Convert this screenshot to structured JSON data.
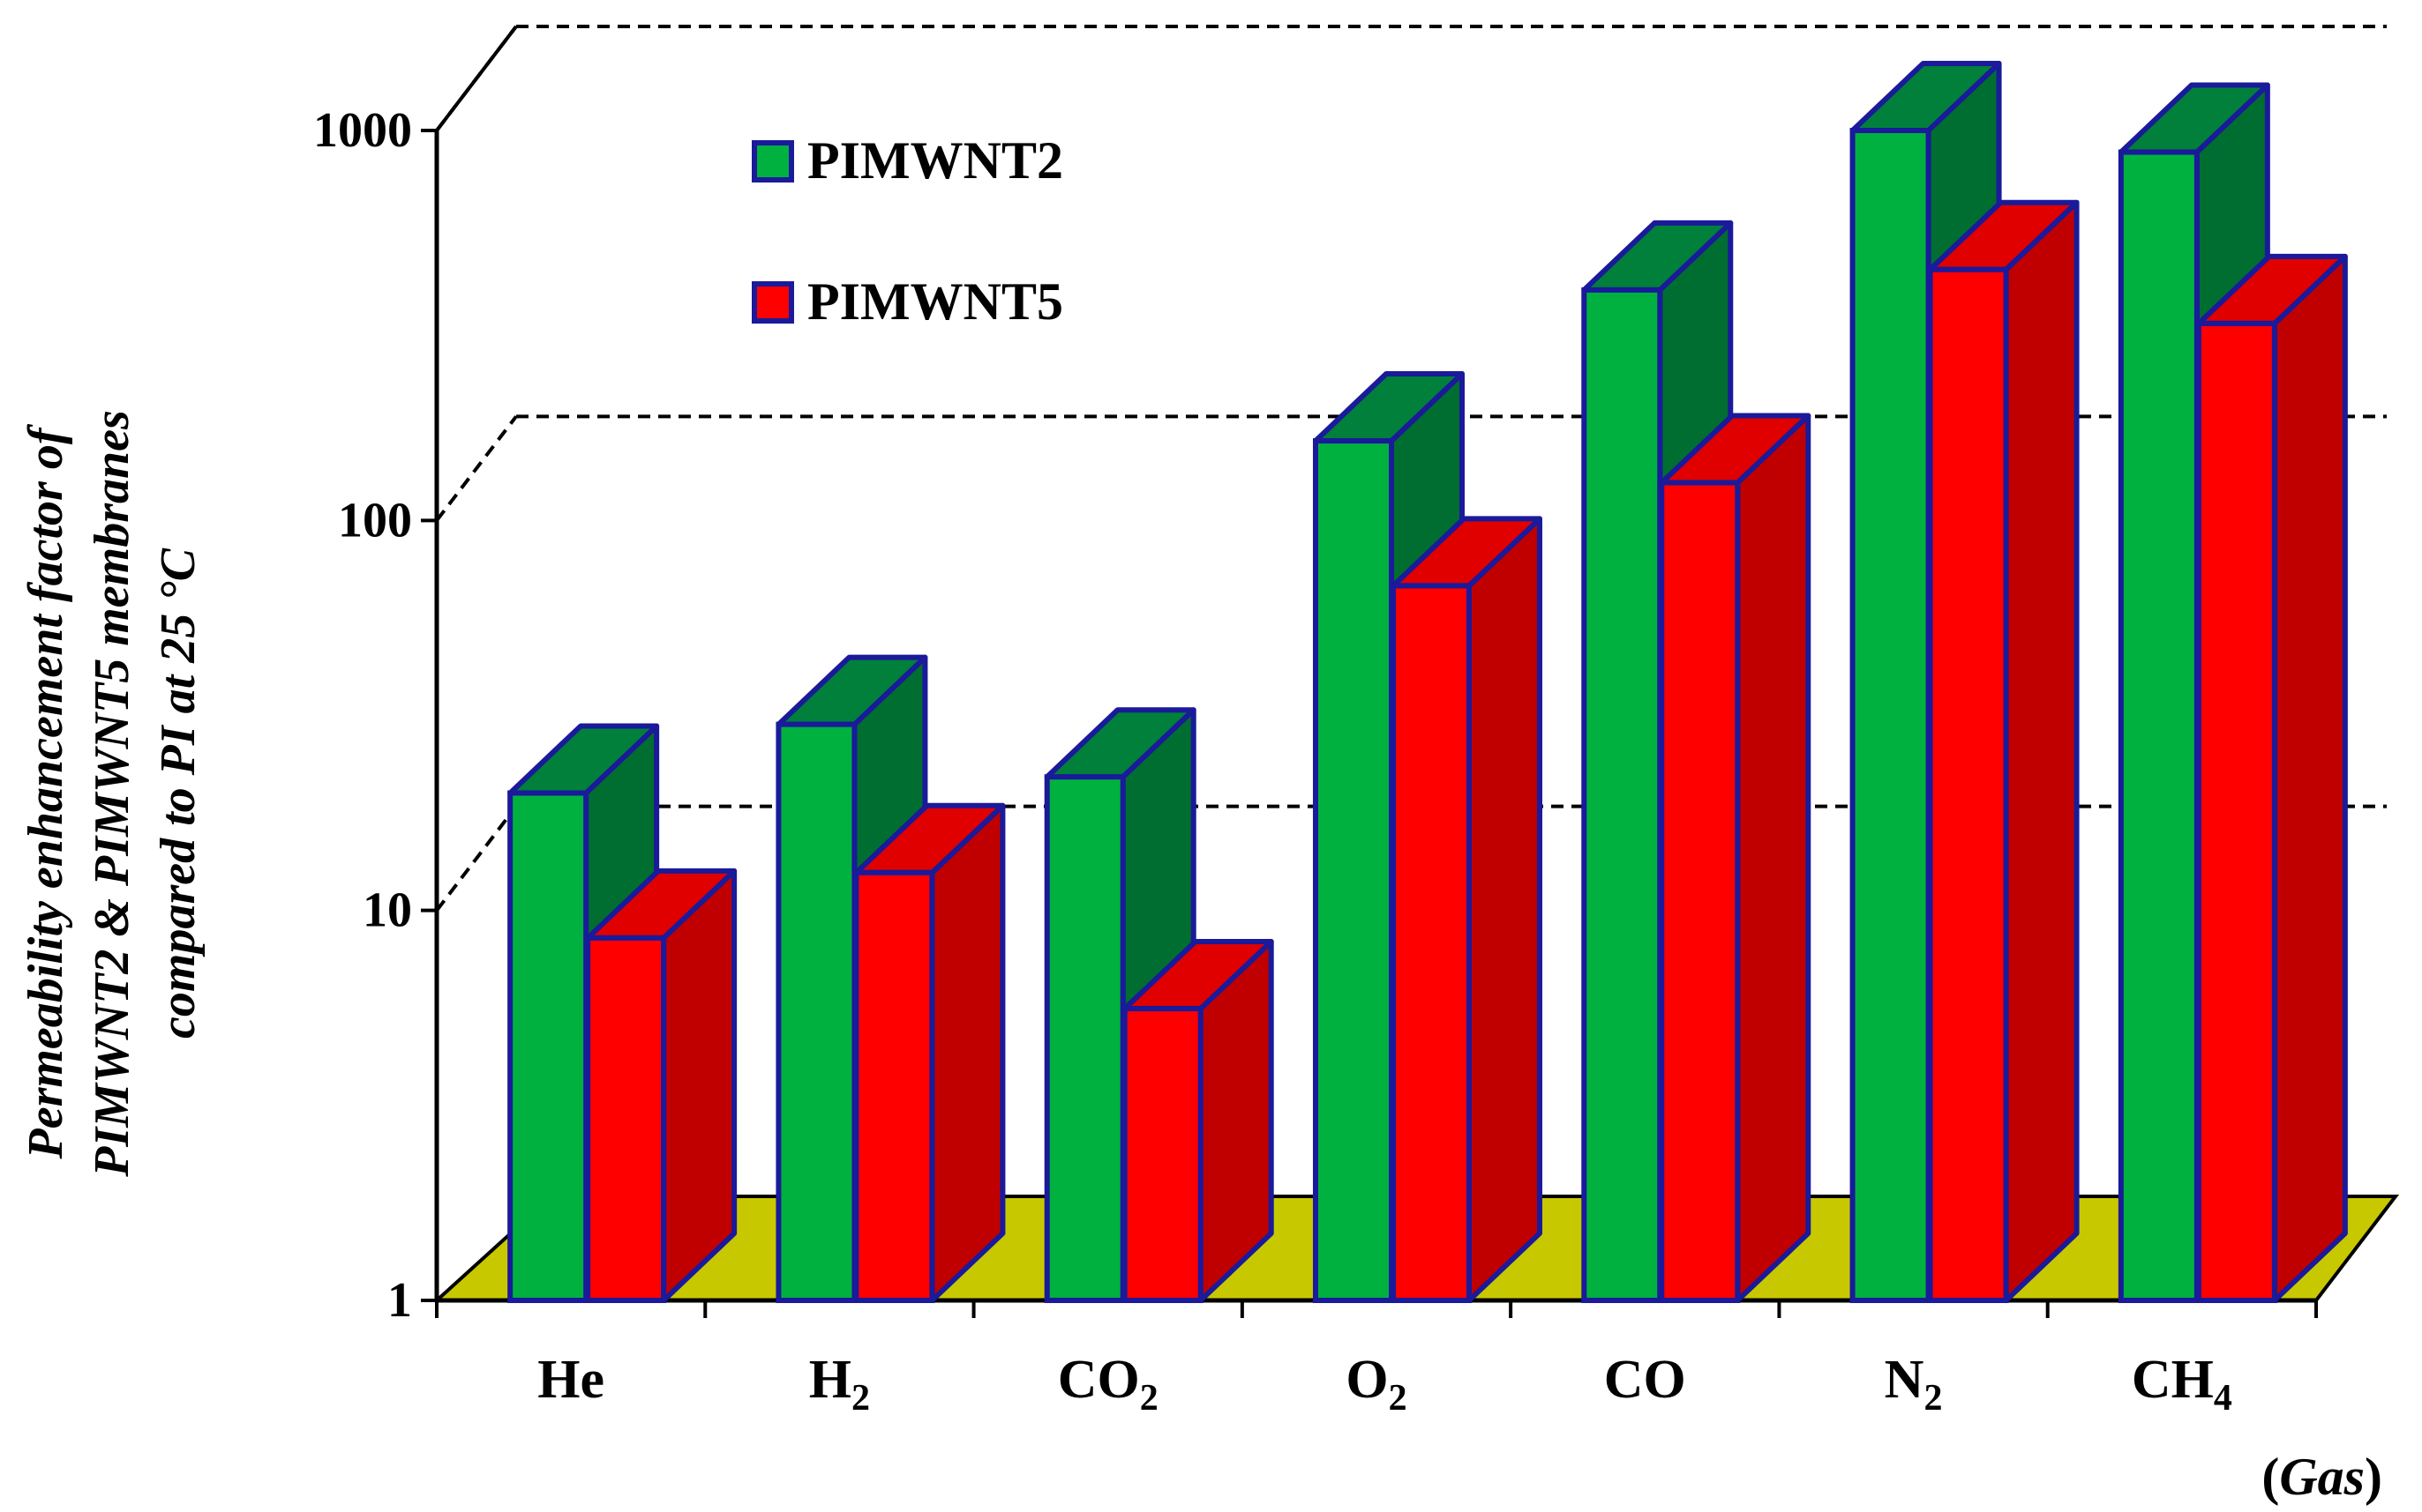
{
  "chart_data": {
    "type": "bar",
    "style": "3d-clustered",
    "scale": "log",
    "ylim": [
      1,
      1000
    ],
    "yticks": [
      "1",
      "10",
      "100",
      "1000"
    ],
    "ylabel_lines": [
      "Permeability enhancement factor of",
      "PIMWNT2 & PIMWNT5 membranes",
      "compared to PI at 25 °C"
    ],
    "xlabel": {
      "open": "(",
      "word": "Gas",
      "close": ")"
    },
    "categories": [
      {
        "base": "He",
        "sub": ""
      },
      {
        "base": "H",
        "sub": "2"
      },
      {
        "base": "CO",
        "sub": "2"
      },
      {
        "base": "O",
        "sub": "2"
      },
      {
        "base": "CO",
        "sub": ""
      },
      {
        "base": "N",
        "sub": "2"
      },
      {
        "base": "CH",
        "sub": "4"
      }
    ],
    "series": [
      {
        "name": "PIMWNT2",
        "color": "#00b140",
        "top_color": "#00803a",
        "side_color": "#006e30",
        "values": [
          20,
          30,
          22,
          160,
          390,
          1000,
          880
        ]
      },
      {
        "name": "PIMWNT5",
        "color": "#ff0000",
        "top_color": "#e00000",
        "side_color": "#c00000",
        "values": [
          8.5,
          12.5,
          5.6,
          68,
          125,
          440,
          320
        ]
      }
    ],
    "legend_position": "top-left",
    "gridlines": "dashed",
    "floor_color": "#c8c800",
    "outline_color": "#1a1a9a"
  }
}
